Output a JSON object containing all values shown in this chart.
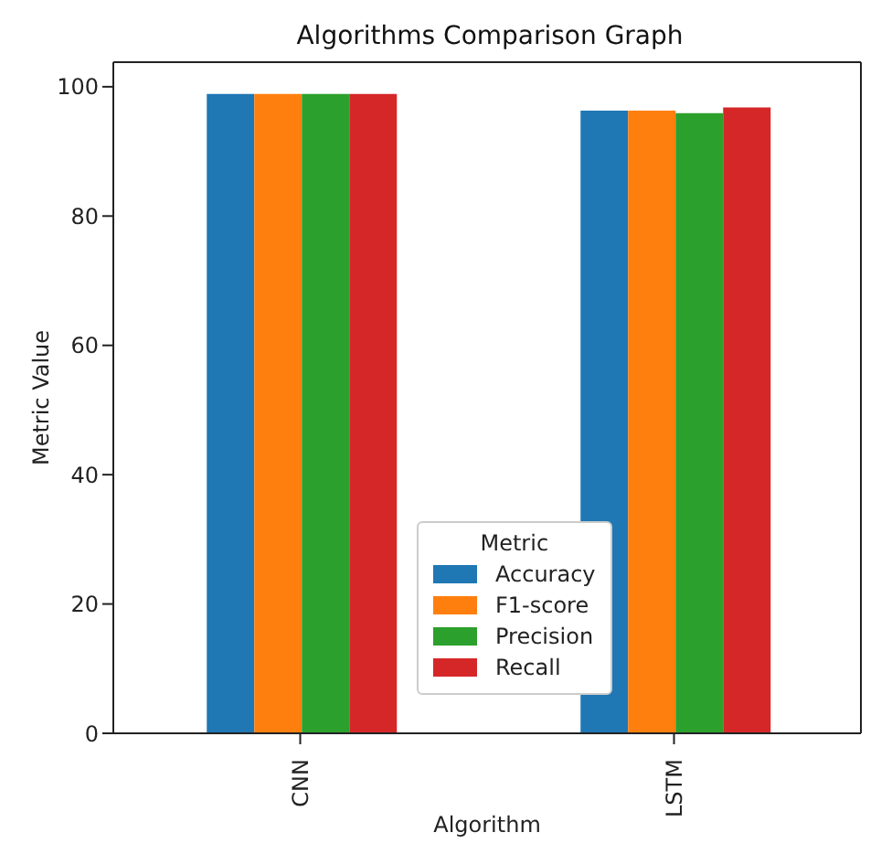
{
  "chart_data": {
    "type": "bar",
    "title": "Algorithms Comparison Graph",
    "xlabel": "Algorithm",
    "ylabel": "Metric Value",
    "legend_title": "Metric",
    "categories": [
      "CNN",
      "LSTM"
    ],
    "series": [
      {
        "name": "Accuracy",
        "color": "#1f77b4",
        "values": [
          98.9,
          96.3
        ]
      },
      {
        "name": "F1-score",
        "color": "#ff7f0e",
        "values": [
          98.9,
          96.3
        ]
      },
      {
        "name": "Precision",
        "color": "#2ca02c",
        "values": [
          98.9,
          95.9
        ]
      },
      {
        "name": "Recall",
        "color": "#d62728",
        "values": [
          98.9,
          96.8
        ]
      }
    ],
    "ylim": [
      0,
      103.8
    ],
    "yticks": [
      0,
      20,
      40,
      60,
      80,
      100
    ],
    "grid": false,
    "legend": "bottom"
  }
}
